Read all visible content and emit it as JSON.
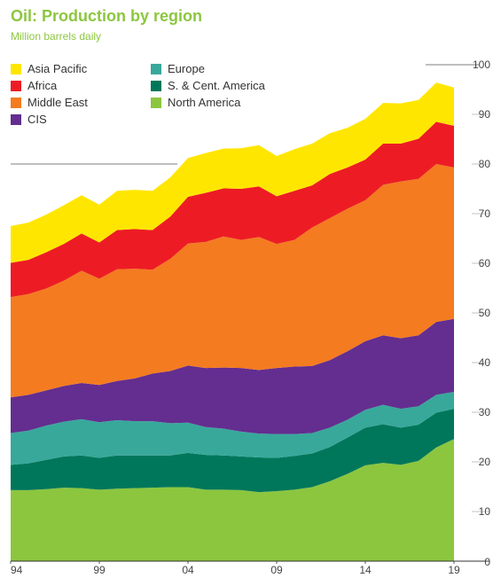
{
  "title": "Oil: Production by region",
  "subtitle": "Million barrels daily",
  "colors": {
    "north_america": "#8cc63f",
    "sc_america": "#00775a",
    "europe": "#38a89b",
    "cis": "#632e8f",
    "middle_east": "#f47b20",
    "africa": "#ed1c24",
    "asia_pacific": "#ffe600"
  },
  "legend": [
    {
      "name": "Asia Pacific",
      "color": "#ffe600"
    },
    {
      "name": "Africa",
      "color": "#ed1c24"
    },
    {
      "name": "Middle East",
      "color": "#f47b20"
    },
    {
      "name": "CIS",
      "color": "#632e8f"
    },
    {
      "name": "Europe",
      "color": "#38a89b"
    },
    {
      "name": "S. & Cent. America",
      "color": "#00775a"
    },
    {
      "name": "North America",
      "color": "#8cc63f"
    }
  ],
  "chart_data": {
    "type": "area",
    "stacked": true,
    "x": [
      1994,
      1995,
      1996,
      1997,
      1998,
      1999,
      2000,
      2001,
      2002,
      2003,
      2004,
      2005,
      2006,
      2007,
      2008,
      2009,
      2010,
      2011,
      2012,
      2013,
      2014,
      2015,
      2016,
      2017,
      2018,
      2019
    ],
    "x_tick_labels": [
      "94",
      "99",
      "04",
      "09",
      "14",
      "19"
    ],
    "y_tick_labels": [
      "0",
      "10",
      "20",
      "30",
      "40",
      "50",
      "60",
      "70",
      "80",
      "90",
      "100"
    ],
    "ylim": [
      0,
      100
    ],
    "grid": "partial",
    "legend_position": "top-left",
    "series": [
      {
        "name": "North America",
        "color": "#8cc63f",
        "values": [
          14.3,
          14.3,
          14.5,
          14.8,
          14.7,
          14.4,
          14.6,
          14.7,
          14.8,
          14.9,
          14.9,
          14.4,
          14.4,
          14.3,
          13.9,
          14.1,
          14.4,
          14.9,
          16.1,
          17.6,
          19.3,
          19.8,
          19.4,
          20.2,
          22.9,
          24.6
        ]
      },
      {
        "name": "S. & Cent. America",
        "color": "#00775a",
        "values": [
          5.1,
          5.4,
          5.9,
          6.3,
          6.6,
          6.4,
          6.7,
          6.6,
          6.5,
          6.4,
          6.9,
          7.0,
          6.9,
          6.8,
          7.0,
          6.7,
          6.8,
          6.8,
          6.9,
          7.3,
          7.6,
          7.8,
          7.5,
          7.3,
          7.0,
          6.1
        ]
      },
      {
        "name": "Europe",
        "color": "#38a89b",
        "values": [
          6.4,
          6.6,
          6.9,
          7.0,
          7.3,
          7.2,
          7.1,
          6.9,
          6.9,
          6.5,
          6.1,
          5.6,
          5.4,
          5.0,
          4.8,
          4.8,
          4.4,
          4.1,
          3.9,
          3.6,
          3.6,
          3.9,
          3.8,
          3.7,
          3.6,
          3.4
        ]
      },
      {
        "name": "CIS",
        "color": "#632e8f",
        "values": [
          7.2,
          7.2,
          7.1,
          7.2,
          7.3,
          7.5,
          7.9,
          8.6,
          9.6,
          10.5,
          11.5,
          11.9,
          12.3,
          12.8,
          12.8,
          13.3,
          13.6,
          13.5,
          13.6,
          13.8,
          13.8,
          14.0,
          14.2,
          14.3,
          14.7,
          14.7
        ]
      },
      {
        "name": "Middle East",
        "color": "#f47b20",
        "values": [
          20.2,
          20.3,
          20.5,
          21.2,
          22.6,
          21.4,
          22.5,
          22.1,
          20.9,
          22.6,
          24.6,
          25.4,
          26.4,
          25.8,
          26.8,
          25.0,
          25.5,
          27.9,
          28.6,
          28.7,
          28.4,
          30.3,
          31.6,
          31.5,
          31.8,
          30.5
        ]
      },
      {
        "name": "Africa",
        "color": "#ed1c24",
        "values": [
          6.9,
          6.9,
          7.3,
          7.4,
          7.5,
          7.3,
          7.9,
          8.0,
          8.0,
          8.5,
          9.4,
          9.9,
          9.7,
          10.3,
          10.2,
          9.6,
          9.9,
          8.5,
          8.9,
          8.3,
          8.2,
          8.3,
          7.6,
          8.1,
          8.5,
          8.4
        ]
      },
      {
        "name": "Asia Pacific",
        "color": "#ffe600",
        "values": [
          7.4,
          7.5,
          7.6,
          7.8,
          7.7,
          7.6,
          7.9,
          7.9,
          7.9,
          7.9,
          7.8,
          8.0,
          8.0,
          8.2,
          8.3,
          8.1,
          8.4,
          8.4,
          8.2,
          8.0,
          8.2,
          8.2,
          8.1,
          7.8,
          7.9,
          7.7
        ]
      }
    ]
  }
}
